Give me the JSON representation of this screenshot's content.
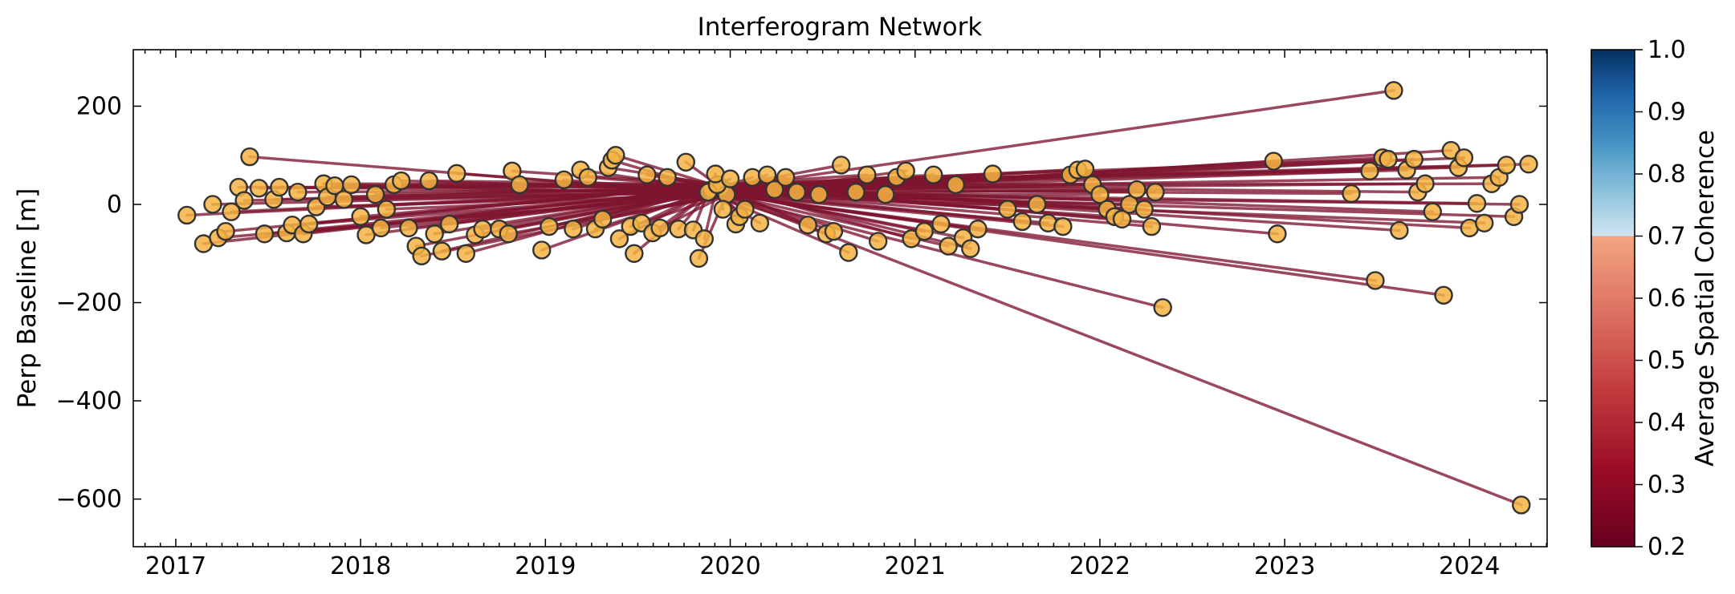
{
  "chart_data": {
    "type": "network-scatter",
    "title": "Interferogram Network",
    "xlabel": "",
    "ylabel": "Perp Baseline [m]",
    "xlim": [
      2016.77,
      2024.42
    ],
    "ylim": [
      -697,
      315
    ],
    "x_ticks": [
      {
        "value": 2017,
        "label": "2017"
      },
      {
        "value": 2018,
        "label": "2018"
      },
      {
        "value": 2019,
        "label": "2019"
      },
      {
        "value": 2020,
        "label": "2020"
      },
      {
        "value": 2021,
        "label": "2021"
      },
      {
        "value": 2022,
        "label": "2022"
      },
      {
        "value": 2023,
        "label": "2023"
      },
      {
        "value": 2024,
        "label": "2024"
      }
    ],
    "y_ticks": [
      {
        "value": 200,
        "label": "200"
      },
      {
        "value": 0,
        "label": "0"
      },
      {
        "value": -200,
        "label": "−200"
      },
      {
        "value": -400,
        "label": "−400"
      },
      {
        "value": -600,
        "label": "−600"
      }
    ],
    "reference_node": {
      "x": 2019.9,
      "y": 30
    },
    "hub_nodes": [
      {
        "x": 2019.95,
        "y": 35
      },
      {
        "x": 2019.88,
        "y": 25
      },
      {
        "x": 2019.98,
        "y": 20
      },
      {
        "x": 2019.93,
        "y": 40
      }
    ],
    "nodes": [
      {
        "x": 2017.06,
        "y": -22
      },
      {
        "x": 2017.15,
        "y": -80
      },
      {
        "x": 2017.2,
        "y": 0
      },
      {
        "x": 2017.23,
        "y": -68
      },
      {
        "x": 2017.27,
        "y": -55
      },
      {
        "x": 2017.3,
        "y": -15
      },
      {
        "x": 2017.34,
        "y": 35
      },
      {
        "x": 2017.37,
        "y": 8
      },
      {
        "x": 2017.4,
        "y": 97
      },
      {
        "x": 2017.45,
        "y": 33
      },
      {
        "x": 2017.48,
        "y": -60
      },
      {
        "x": 2017.53,
        "y": 10
      },
      {
        "x": 2017.56,
        "y": 35
      },
      {
        "x": 2017.6,
        "y": -58
      },
      {
        "x": 2017.63,
        "y": -42
      },
      {
        "x": 2017.66,
        "y": 25
      },
      {
        "x": 2017.69,
        "y": -60
      },
      {
        "x": 2017.72,
        "y": -40
      },
      {
        "x": 2017.76,
        "y": -5
      },
      {
        "x": 2017.8,
        "y": 42
      },
      {
        "x": 2017.82,
        "y": 15
      },
      {
        "x": 2017.86,
        "y": 38
      },
      {
        "x": 2017.91,
        "y": 10
      },
      {
        "x": 2017.95,
        "y": 40
      },
      {
        "x": 2018.0,
        "y": -25
      },
      {
        "x": 2018.03,
        "y": -62
      },
      {
        "x": 2018.08,
        "y": 20
      },
      {
        "x": 2018.11,
        "y": -48
      },
      {
        "x": 2018.14,
        "y": -10
      },
      {
        "x": 2018.18,
        "y": 40
      },
      {
        "x": 2018.22,
        "y": 48
      },
      {
        "x": 2018.26,
        "y": -48
      },
      {
        "x": 2018.3,
        "y": -85
      },
      {
        "x": 2018.33,
        "y": -105
      },
      {
        "x": 2018.37,
        "y": 48
      },
      {
        "x": 2018.4,
        "y": -60
      },
      {
        "x": 2018.44,
        "y": -95
      },
      {
        "x": 2018.48,
        "y": -40
      },
      {
        "x": 2018.52,
        "y": 63
      },
      {
        "x": 2018.57,
        "y": -100
      },
      {
        "x": 2018.62,
        "y": -62
      },
      {
        "x": 2018.66,
        "y": -50
      },
      {
        "x": 2018.75,
        "y": -50
      },
      {
        "x": 2018.8,
        "y": -60
      },
      {
        "x": 2018.82,
        "y": 68
      },
      {
        "x": 2018.86,
        "y": 40
      },
      {
        "x": 2018.98,
        "y": -93
      },
      {
        "x": 2019.02,
        "y": -45
      },
      {
        "x": 2019.1,
        "y": 50
      },
      {
        "x": 2019.15,
        "y": -50
      },
      {
        "x": 2019.19,
        "y": 70
      },
      {
        "x": 2019.23,
        "y": 55
      },
      {
        "x": 2019.27,
        "y": -50
      },
      {
        "x": 2019.31,
        "y": -30
      },
      {
        "x": 2019.34,
        "y": 75
      },
      {
        "x": 2019.36,
        "y": 90
      },
      {
        "x": 2019.38,
        "y": 100
      },
      {
        "x": 2019.4,
        "y": -70
      },
      {
        "x": 2019.46,
        "y": -45
      },
      {
        "x": 2019.48,
        "y": -100
      },
      {
        "x": 2019.52,
        "y": -38
      },
      {
        "x": 2019.55,
        "y": 60
      },
      {
        "x": 2019.58,
        "y": -58
      },
      {
        "x": 2019.62,
        "y": -48
      },
      {
        "x": 2019.66,
        "y": 55
      },
      {
        "x": 2019.72,
        "y": -50
      },
      {
        "x": 2019.76,
        "y": 86
      },
      {
        "x": 2019.8,
        "y": -52
      },
      {
        "x": 2019.83,
        "y": -110
      },
      {
        "x": 2019.86,
        "y": -70
      },
      {
        "x": 2019.92,
        "y": 62
      },
      {
        "x": 2019.96,
        "y": -10
      },
      {
        "x": 2020.0,
        "y": 52
      },
      {
        "x": 2020.03,
        "y": -40
      },
      {
        "x": 2020.05,
        "y": -25
      },
      {
        "x": 2020.08,
        "y": -10
      },
      {
        "x": 2020.12,
        "y": 55
      },
      {
        "x": 2020.16,
        "y": -38
      },
      {
        "x": 2020.2,
        "y": 60
      },
      {
        "x": 2020.24,
        "y": 30
      },
      {
        "x": 2020.3,
        "y": 55
      },
      {
        "x": 2020.36,
        "y": 25
      },
      {
        "x": 2020.42,
        "y": -42
      },
      {
        "x": 2020.48,
        "y": 20
      },
      {
        "x": 2020.52,
        "y": -60
      },
      {
        "x": 2020.56,
        "y": -55
      },
      {
        "x": 2020.6,
        "y": 80
      },
      {
        "x": 2020.64,
        "y": -98
      },
      {
        "x": 2020.68,
        "y": 25
      },
      {
        "x": 2020.74,
        "y": 60
      },
      {
        "x": 2020.8,
        "y": -75
      },
      {
        "x": 2020.84,
        "y": 20
      },
      {
        "x": 2020.9,
        "y": 55
      },
      {
        "x": 2020.95,
        "y": 68
      },
      {
        "x": 2020.98,
        "y": -70
      },
      {
        "x": 2021.05,
        "y": -55
      },
      {
        "x": 2021.1,
        "y": 60
      },
      {
        "x": 2021.14,
        "y": -40
      },
      {
        "x": 2021.18,
        "y": -85
      },
      {
        "x": 2021.22,
        "y": 40
      },
      {
        "x": 2021.26,
        "y": -68
      },
      {
        "x": 2021.3,
        "y": -90
      },
      {
        "x": 2021.34,
        "y": -50
      },
      {
        "x": 2021.42,
        "y": 62
      },
      {
        "x": 2021.5,
        "y": -10
      },
      {
        "x": 2021.58,
        "y": -35
      },
      {
        "x": 2021.66,
        "y": 0
      },
      {
        "x": 2021.72,
        "y": -38
      },
      {
        "x": 2021.8,
        "y": -45
      },
      {
        "x": 2021.84,
        "y": 60
      },
      {
        "x": 2021.88,
        "y": 70
      },
      {
        "x": 2021.92,
        "y": 72
      },
      {
        "x": 2021.96,
        "y": 40
      },
      {
        "x": 2022.0,
        "y": 20
      },
      {
        "x": 2022.04,
        "y": -10
      },
      {
        "x": 2022.08,
        "y": -25
      },
      {
        "x": 2022.12,
        "y": -30
      },
      {
        "x": 2022.16,
        "y": 0
      },
      {
        "x": 2022.2,
        "y": 30
      },
      {
        "x": 2022.24,
        "y": -10
      },
      {
        "x": 2022.28,
        "y": -45
      },
      {
        "x": 2022.3,
        "y": 25
      },
      {
        "x": 2022.34,
        "y": -210
      },
      {
        "x": 2022.94,
        "y": 88
      },
      {
        "x": 2022.96,
        "y": -60
      },
      {
        "x": 2023.36,
        "y": 22
      },
      {
        "x": 2023.46,
        "y": 68
      },
      {
        "x": 2023.49,
        "y": -155
      },
      {
        "x": 2023.53,
        "y": 95
      },
      {
        "x": 2023.56,
        "y": 92
      },
      {
        "x": 2023.59,
        "y": 232
      },
      {
        "x": 2023.62,
        "y": -53
      },
      {
        "x": 2023.66,
        "y": 70
      },
      {
        "x": 2023.7,
        "y": 92
      },
      {
        "x": 2023.72,
        "y": 25
      },
      {
        "x": 2023.76,
        "y": 42
      },
      {
        "x": 2023.8,
        "y": -15
      },
      {
        "x": 2023.86,
        "y": -185
      },
      {
        "x": 2023.9,
        "y": 110
      },
      {
        "x": 2023.94,
        "y": 75
      },
      {
        "x": 2023.97,
        "y": 95
      },
      {
        "x": 2024.0,
        "y": -48
      },
      {
        "x": 2024.04,
        "y": 2
      },
      {
        "x": 2024.08,
        "y": -38
      },
      {
        "x": 2024.12,
        "y": 42
      },
      {
        "x": 2024.16,
        "y": 55
      },
      {
        "x": 2024.2,
        "y": 80
      },
      {
        "x": 2024.24,
        "y": -25
      },
      {
        "x": 2024.27,
        "y": 0
      },
      {
        "x": 2024.32,
        "y": 82
      },
      {
        "x": 2024.28,
        "y": -612
      }
    ],
    "edge_color": "#7e1530",
    "node_fill": "#f5b342",
    "node_edge": "#333333",
    "colorbar": {
      "label": "Average Spatial Coherence",
      "range": [
        0.2,
        1.0
      ],
      "split_value": 0.7,
      "ticks": [
        {
          "value": 1.0,
          "label": "1.0"
        },
        {
          "value": 0.9,
          "label": "0.9"
        },
        {
          "value": 0.8,
          "label": "0.8"
        },
        {
          "value": 0.7,
          "label": "0.7"
        },
        {
          "value": 0.6,
          "label": "0.6"
        },
        {
          "value": 0.5,
          "label": "0.5"
        },
        {
          "value": 0.4,
          "label": "0.4"
        },
        {
          "value": 0.3,
          "label": "0.3"
        },
        {
          "value": 0.2,
          "label": "0.2"
        }
      ],
      "lower_colors": [
        "#67001f",
        "#9b0d27",
        "#c23a3c",
        "#dc7061",
        "#f2a582"
      ],
      "upper_colors": [
        "#d1e5f0",
        "#8ac0db",
        "#4393c3",
        "#2166ac",
        "#053061"
      ]
    }
  }
}
